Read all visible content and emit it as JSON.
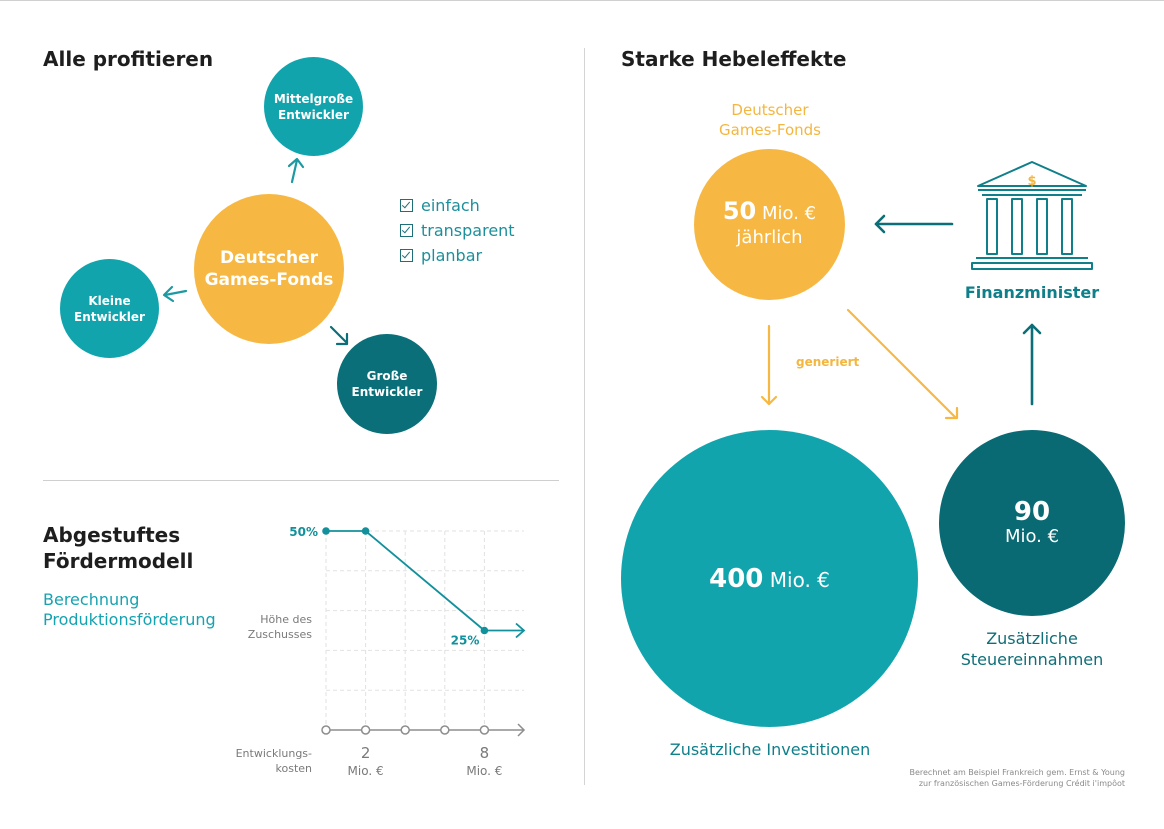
{
  "left": {
    "heading": "Alle profitieren",
    "center_circle": {
      "line1": "Deutscher",
      "line2": "Games-Fonds"
    },
    "mid_dev": {
      "line1": "Mittelgroße",
      "line2": "Entwickler"
    },
    "small_dev": {
      "line1": "Kleine",
      "line2": "Entwickler"
    },
    "large_dev": {
      "line1": "Große",
      "line2": "Entwickler"
    },
    "checklist": [
      "einfach",
      "transparent",
      "planbar"
    ]
  },
  "model": {
    "heading_line1": "Abgestuftes",
    "heading_line2": "Fördermodell",
    "subtitle_line1": "Berechnung",
    "subtitle_line2": "Produktionsförderung",
    "y_label_line1": "Höhe des",
    "y_label_line2": "Zuschusses",
    "x_label_line1": "Entwicklungs-",
    "x_label_line2": "kosten"
  },
  "chart_data": {
    "type": "line",
    "x": [
      0,
      2,
      8
    ],
    "values": [
      50,
      50,
      25
    ],
    "point_labels": [
      "50%",
      "",
      "25%"
    ],
    "x_ticks": [
      0,
      2,
      4,
      6,
      8
    ],
    "x_tick_labels": [
      {
        "value": 2,
        "line1": "2",
        "line2": "Mio. €"
      },
      {
        "value": 8,
        "line1": "8",
        "line2": "Mio. €"
      }
    ],
    "xlim": [
      0,
      10
    ],
    "ylim": [
      0,
      50
    ],
    "grid": true
  },
  "right": {
    "heading": "Starke Hebeleffekte",
    "fund_label_line1": "Deutscher",
    "fund_label_line2": "Games-Fonds",
    "fund_circle": {
      "amount": "50",
      "unit": "Mio. €",
      "period": "jährlich"
    },
    "ministry_label": "Finanzminister",
    "generiert": "generiert",
    "invest_circle": {
      "amount": "400",
      "unit": "Mio. €"
    },
    "invest_label": "Zusätzliche Investitionen",
    "tax_circle": {
      "amount": "90",
      "unit": "Mio. €"
    },
    "tax_label_line1": "Zusätzliche",
    "tax_label_line2": "Steuereinnahmen",
    "footnote_line1": "Berechnet am Beispiel Frankreich gem. Ernst & Young",
    "footnote_line2": "zur französischen Games-Förderung Crédit i'impôot"
  },
  "colors": {
    "yellow": "#f7b843",
    "teal": "#12a4ad",
    "dark_teal": "#0a6f78",
    "deep_teal": "#096a74"
  }
}
